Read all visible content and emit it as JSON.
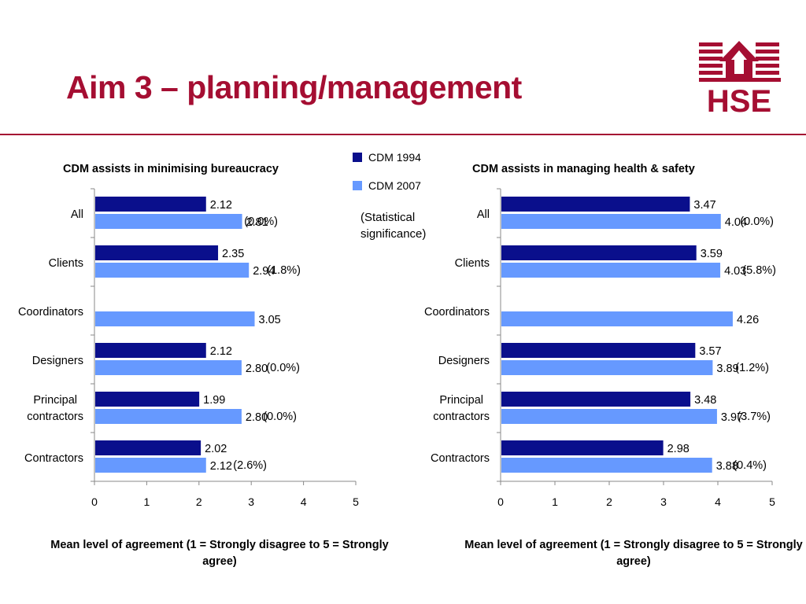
{
  "slide": {
    "title": "Aim 3 – planning/management",
    "logo_text": "HSE",
    "note": "(Statistical significance)"
  },
  "legend": [
    {
      "label": "CDM 1994",
      "color": "#0a0f8c"
    },
    {
      "label": "CDM 2007",
      "color": "#6699ff"
    }
  ],
  "colors": {
    "accent": "#a50e32",
    "cdm1994": "#0a0f8c",
    "cdm2007": "#6699ff"
  },
  "chart_data": [
    {
      "type": "bar",
      "orientation": "horizontal",
      "title": "CDM assists in minimising bureaucracy",
      "xlabel": "Mean level of agreement (1 = Strongly disagree to 5 = Strongly agree)",
      "xlim": [
        0,
        5
      ],
      "xticks": [
        0,
        1,
        2,
        3,
        4,
        5
      ],
      "categories": [
        "All",
        "Clients",
        "Coordinators",
        "Designers",
        "Principal contractors",
        "Contractors"
      ],
      "series": [
        {
          "name": "CDM 1994",
          "values": [
            2.12,
            2.35,
            null,
            2.12,
            1.99,
            2.02
          ]
        },
        {
          "name": "CDM 2007",
          "values": [
            2.81,
            2.94,
            3.05,
            2.8,
            2.8,
            2.12
          ]
        }
      ],
      "value_labels": {
        "CDM 1994": [
          "2.12",
          "2.35",
          "",
          "2.12",
          "1.99",
          "2.02"
        ],
        "CDM 2007": [
          "2.81",
          "2.94",
          "3.05",
          "2.80",
          "2.80",
          "2.12"
        ]
      },
      "significance": [
        "(0.0%)",
        "(1.8%)",
        "",
        "(0.0%)",
        "(0.0%)",
        "(2.6%)"
      ]
    },
    {
      "type": "bar",
      "orientation": "horizontal",
      "title": "CDM assists in managing health & safety",
      "xlabel": "Mean level of agreement (1 = Strongly disagree to 5 = Strongly agree)",
      "xlim": [
        0,
        5
      ],
      "xticks": [
        0,
        1,
        2,
        3,
        4,
        5
      ],
      "categories": [
        "All",
        "Clients",
        "Coordinators",
        "Designers",
        "Principal contractors",
        "Contractors"
      ],
      "series": [
        {
          "name": "CDM 1994",
          "values": [
            3.47,
            3.59,
            null,
            3.57,
            3.48,
            2.98
          ]
        },
        {
          "name": "CDM 2007",
          "values": [
            4.04,
            4.03,
            4.26,
            3.89,
            3.97,
            3.88
          ]
        }
      ],
      "value_labels": {
        "CDM 1994": [
          "3.47",
          "3.59",
          "",
          "3.57",
          "3.48",
          "2.98"
        ],
        "CDM 2007": [
          "4.04",
          "4.03",
          "4.26",
          "3.89",
          "3.97",
          "3.88"
        ]
      },
      "significance": [
        "(0.0%)",
        "(5.8%)",
        "",
        "(1.2%)",
        "(3.7%)",
        "(0.4%)"
      ]
    }
  ]
}
